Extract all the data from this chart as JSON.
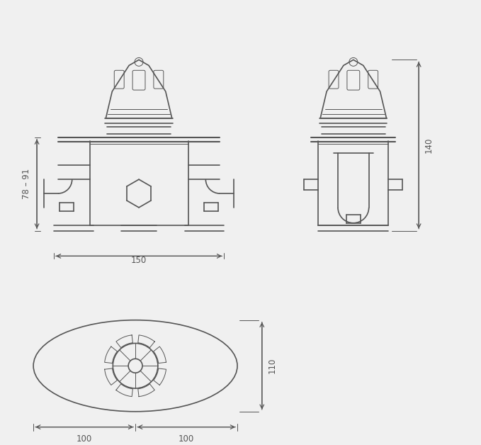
{
  "bg_color": "#f0f0f0",
  "line_color": "#555555",
  "dim_color": "#555555",
  "line_width": 1.2,
  "thin_line": 0.7,
  "dim_fontsize": 8.5,
  "dim_150": "150",
  "dim_78_91": "78 – 91",
  "dim_140": "140",
  "dim_110": "110",
  "dim_100a": "100",
  "dim_100b": "100"
}
